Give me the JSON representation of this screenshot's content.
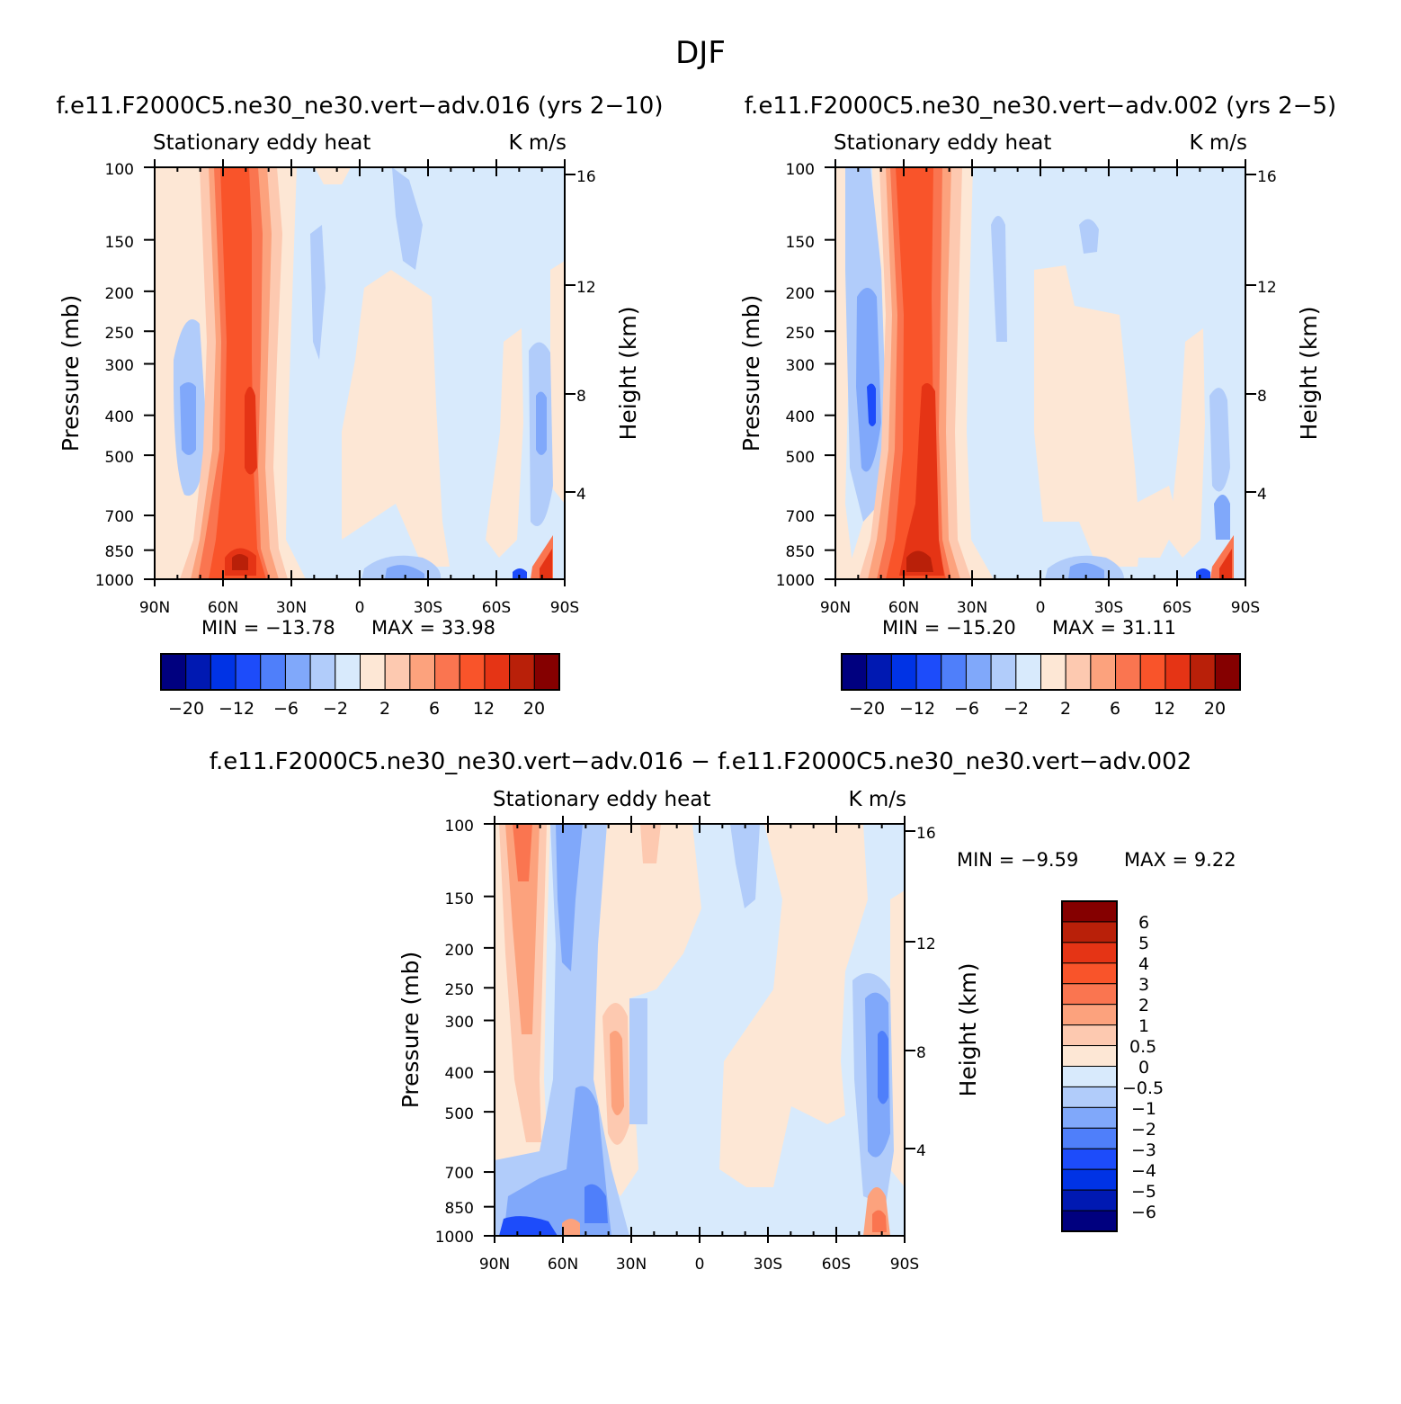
{
  "figure_title": "DJF",
  "colors": {
    "cb16": [
      "#00007f",
      "#0019b2",
      "#0033e5",
      "#1d4cfa",
      "#4f7ffa",
      "#80a8fa",
      "#b1ccfa",
      "#d8eafc",
      "#fde7d5",
      "#fdc9b0",
      "#fca27d",
      "#fa7550",
      "#f9542a",
      "#e53415",
      "#b92009",
      "#850000"
    ]
  },
  "chart_data": [
    {
      "type": "heatmap",
      "id": "panel1",
      "title": "f.e11.F2000C5.ne30_ne30.vert−adv.016 (yrs 2−10)",
      "left_label": "Stationary eddy heat",
      "right_label": "K m/s",
      "ylabel": "Pressure (mb)",
      "ylabel_right": "Height (km)",
      "x_ticks": [
        "90N",
        "60N",
        "30N",
        "0",
        "30S",
        "60S",
        "90S"
      ],
      "y_ticks": [
        "100",
        "150",
        "200",
        "250",
        "300",
        "400",
        "500",
        "700",
        "850",
        "1000"
      ],
      "height_ticks": [
        "16",
        "12",
        "8",
        "4"
      ],
      "min_label": "MIN = −13.78",
      "max_label": "MAX = 33.98",
      "colorbar_labels": [
        "−20",
        "−12",
        "−6",
        "−2",
        "2",
        "6",
        "12",
        "20"
      ]
    },
    {
      "type": "heatmap",
      "id": "panel2",
      "title": "f.e11.F2000C5.ne30_ne30.vert−adv.002 (yrs 2−5)",
      "left_label": "Stationary eddy heat",
      "right_label": "K m/s",
      "ylabel": "Pressure (mb)",
      "ylabel_right": "Height (km)",
      "x_ticks": [
        "90N",
        "60N",
        "30N",
        "0",
        "30S",
        "60S",
        "90S"
      ],
      "y_ticks": [
        "100",
        "150",
        "200",
        "250",
        "300",
        "400",
        "500",
        "700",
        "850",
        "1000"
      ],
      "height_ticks": [
        "16",
        "12",
        "8",
        "4"
      ],
      "min_label": "MIN = −15.20",
      "max_label": "MAX = 31.11",
      "colorbar_labels": [
        "−20",
        "−12",
        "−6",
        "−2",
        "2",
        "6",
        "12",
        "20"
      ]
    },
    {
      "type": "heatmap",
      "id": "panel3",
      "title": "f.e11.F2000C5.ne30_ne30.vert−adv.016 − f.e11.F2000C5.ne30_ne30.vert−adv.002",
      "left_label": "Stationary eddy heat",
      "right_label": "K m/s",
      "ylabel": "Pressure (mb)",
      "ylabel_right": "Height (km)",
      "x_ticks": [
        "90N",
        "60N",
        "30N",
        "0",
        "30S",
        "60S",
        "90S"
      ],
      "y_ticks": [
        "100",
        "150",
        "200",
        "250",
        "300",
        "400",
        "500",
        "700",
        "850",
        "1000"
      ],
      "height_ticks": [
        "16",
        "12",
        "8",
        "4"
      ],
      "min_label": "MIN = −9.59",
      "max_label": "MAX = 9.22",
      "colorbar_labels": [
        "6",
        "5",
        "4",
        "3",
        "2",
        "1",
        "0.5",
        "0",
        "−0.5",
        "−1",
        "−2",
        "−3",
        "−4",
        "−5",
        "−6"
      ]
    }
  ]
}
